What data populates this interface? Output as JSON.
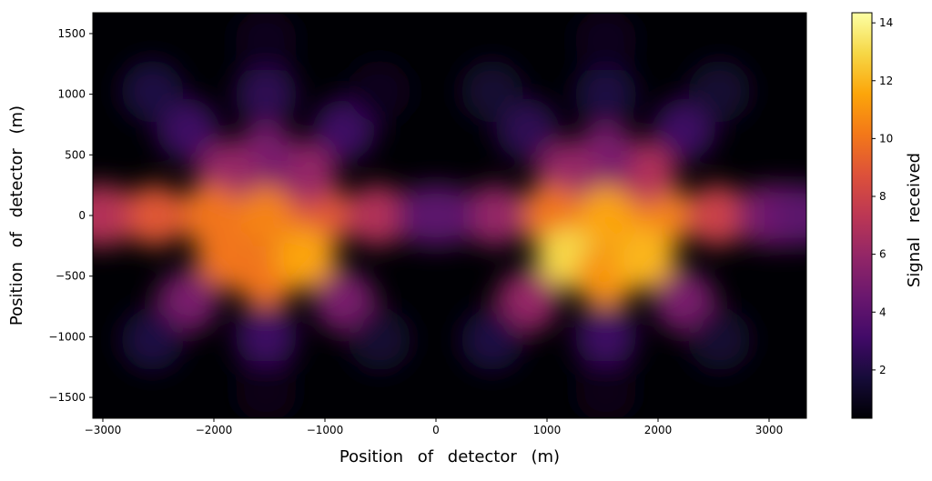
{
  "chart_data": {
    "type": "scatter",
    "xlabel": "Position of detector (m)",
    "ylabel": "Position of detector (m)",
    "colormap": "inferno",
    "xlim": [
      -3090,
      3336
    ],
    "ylim": [
      -1672,
      1672
    ],
    "xticks": [
      {
        "value": -3000,
        "label": "−3000"
      },
      {
        "value": -2000,
        "label": "−2000"
      },
      {
        "value": -1000,
        "label": "−1000"
      },
      0,
      1000,
      2000,
      3000
    ],
    "yticks": [
      {
        "value": -1500,
        "label": "−1500"
      },
      {
        "value": -1000,
        "label": "−1000"
      },
      {
        "value": -500,
        "label": "−500"
      },
      0,
      500,
      1000,
      1500
    ],
    "x": [
      1530,
      2030,
      1884,
      1530,
      1176,
      1030,
      1176,
      1530,
      1884,
      2530,
      2237,
      1530,
      823,
      530,
      823,
      1530,
      2237,
      2980,
      2555,
      1530,
      505,
      80,
      505,
      1530,
      2555,
      -1530,
      -1030,
      -1176,
      -1530,
      -1884,
      -2030,
      -1884,
      -1530,
      -1176,
      -530,
      -823,
      -1530,
      -2237,
      -2530,
      -2237,
      -1530,
      -823,
      -80,
      -505,
      -1530,
      -2555,
      -2980,
      -2555,
      -1530,
      -505,
      -3080,
      3100,
      3210,
      3320,
      -70
    ],
    "y": [
      0,
      0,
      354,
      500,
      354,
      0,
      -354,
      -500,
      -354,
      0,
      707,
      1000,
      707,
      0,
      -707,
      -1000,
      -707,
      0,
      1025,
      1450,
      1025,
      0,
      -1025,
      -1450,
      -1025,
      0,
      0,
      354,
      500,
      354,
      0,
      -354,
      -500,
      -354,
      0,
      707,
      1000,
      707,
      0,
      -707,
      -1000,
      -707,
      0,
      1025,
      1450,
      1025,
      0,
      -1025,
      -1450,
      -1025,
      0,
      0,
      0,
      0,
      0
    ],
    "values": [
      11.5,
      10.5,
      7,
      5,
      6,
      10,
      13,
      11,
      12,
      8,
      3,
      2,
      2.5,
      6,
      6,
      3,
      5,
      5,
      1.5,
      1,
      1.5,
      4,
      2,
      0.8,
      1.5,
      10.5,
      9,
      6,
      5,
      6,
      10,
      10,
      10,
      11.5,
      7,
      3,
      2.5,
      3,
      9,
      5,
      3,
      5,
      3,
      1,
      1,
      2,
      8,
      2,
      0.8,
      1.5,
      7,
      5,
      4.5,
      4,
      4
    ],
    "colorbar": {
      "label": "Signal received",
      "clim": [
        0.33,
        14.35
      ],
      "ticks": [
        2,
        4,
        6,
        8,
        10,
        12,
        14
      ]
    }
  }
}
